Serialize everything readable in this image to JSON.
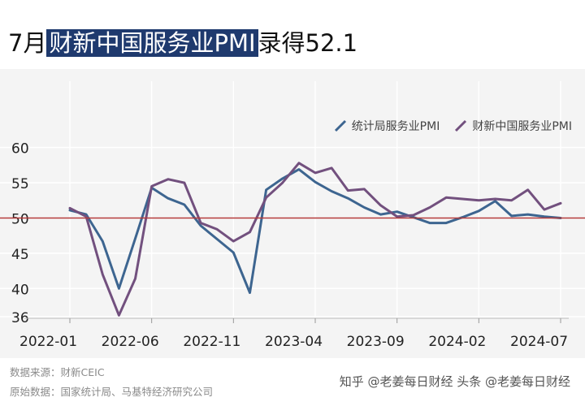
{
  "title": {
    "prefix": "7月",
    "highlight": "财新中国服务业PMI",
    "suffix": "录得52.1"
  },
  "legend": [
    {
      "label": "统计局服务业PMI",
      "color": "#3d6590"
    },
    {
      "label": "财新中国服务业PMI",
      "color": "#72507e"
    }
  ],
  "source": {
    "line1": "数据来源：财新CEIC",
    "line2": "原始数据：国家统计局、马基特经济研究公司"
  },
  "watermark": "知乎 @老姜每日财经 头条 @老姜每日财经",
  "colors": {
    "series1": "#3d6590",
    "series2": "#72507e",
    "refline": "#b33a3a",
    "grid": "#ffffff",
    "background": "#f4f4f4"
  },
  "chart_data": {
    "type": "line",
    "title": "7月财新中国服务业PMI录得52.1",
    "x": [
      "2022-01",
      "2022-02",
      "2022-03",
      "2022-04",
      "2022-05",
      "2022-06",
      "2022-07",
      "2022-08",
      "2022-09",
      "2022-10",
      "2022-11",
      "2022-12",
      "2023-01",
      "2023-02",
      "2023-03",
      "2023-04",
      "2023-05",
      "2023-06",
      "2023-07",
      "2023-08",
      "2023-09",
      "2023-10",
      "2023-11",
      "2023-12",
      "2024-01",
      "2024-02",
      "2024-03",
      "2024-04",
      "2024-05",
      "2024-06",
      "2024-07"
    ],
    "tick_labels": [
      "2022-01",
      "2022-06",
      "2022-11",
      "2023-04",
      "2023-09",
      "2024-02",
      "2024-07"
    ],
    "y_ticks": [
      36,
      40,
      45,
      50,
      55,
      60
    ],
    "ylim": [
      36,
      61
    ],
    "reference_line": 50,
    "legend_position": "top-right",
    "grid": true,
    "series": [
      {
        "name": "统计局服务业PMI",
        "values": [
          51.1,
          50.5,
          46.7,
          40.0,
          47.1,
          54.3,
          52.8,
          51.9,
          48.9,
          47.0,
          45.1,
          39.4,
          54.0,
          55.6,
          56.9,
          55.1,
          53.8,
          52.8,
          51.5,
          50.5,
          50.9,
          50.1,
          49.3,
          49.3,
          50.1,
          51.0,
          52.4,
          50.3,
          50.5,
          50.2,
          50.0
        ]
      },
      {
        "name": "财新中国服务业PMI",
        "values": [
          51.4,
          50.2,
          42.0,
          36.2,
          41.4,
          54.5,
          55.5,
          55.0,
          49.3,
          48.4,
          46.7,
          48.0,
          52.9,
          55.0,
          57.8,
          56.4,
          57.1,
          53.9,
          54.1,
          51.8,
          50.2,
          50.4,
          51.5,
          52.9,
          52.7,
          52.5,
          52.7,
          52.5,
          54.0,
          51.2,
          52.1
        ]
      }
    ]
  }
}
